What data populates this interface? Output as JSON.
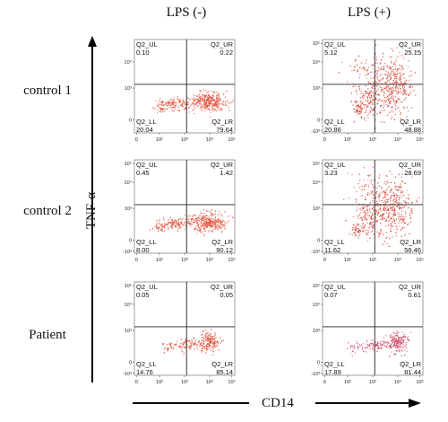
{
  "columns": [
    "LPS (-)",
    "LPS (+)"
  ],
  "rows": [
    "control 1",
    "control 2",
    "Patient"
  ],
  "y_axis_label": "TNF-α",
  "x_axis_label": "CD14",
  "chart_data": {
    "type": "scatter",
    "plot_kind": "flow cytometry quadrant dot plots",
    "x_ticks": [
      "0",
      "10²",
      "10³",
      "10⁴",
      "10⁵"
    ],
    "y_ticks": [
      "-10³",
      "0",
      "10³",
      "10⁴",
      "10⁵"
    ],
    "y_ticks_shown_control1_lps_minus": [
      "0",
      "10³",
      "10⁴"
    ],
    "panels": [
      {
        "row": "control 1",
        "condition": "LPS (-)",
        "color": "#e2553f",
        "density": "tight",
        "quadrants": {
          "UL": {
            "label": "Q2_UL",
            "value": "0.10"
          },
          "UR": {
            "label": "Q2_UR",
            "value": "0.22"
          },
          "LL": {
            "label": "Q2_LL",
            "value": "20.04"
          },
          "LR": {
            "label": "Q2_LR",
            "value": "79.64"
          }
        }
      },
      {
        "row": "control 1",
        "condition": "LPS (+)",
        "color": "#d9483c",
        "density": "spread",
        "quadrants": {
          "UL": {
            "label": "Q2_UL",
            "value": "5.12"
          },
          "UR": {
            "label": "Q2_UR",
            "value": "25.15"
          },
          "LL": {
            "label": "Q2_LL",
            "value": "20.86"
          },
          "LR": {
            "label": "Q2_LR",
            "value": "48.88"
          }
        }
      },
      {
        "row": "control 2",
        "condition": "LPS (-)",
        "color": "#e2553f",
        "density": "tight",
        "quadrants": {
          "UL": {
            "label": "Q2_UL",
            "value": "0.45"
          },
          "UR": {
            "label": "Q2_UR",
            "value": "1.42"
          },
          "LL": {
            "label": "Q2_LL",
            "value": "8.00"
          },
          "LR": {
            "label": "Q2_LR",
            "value": "90.12"
          }
        }
      },
      {
        "row": "control 2",
        "condition": "LPS (+)",
        "color": "#d9483c",
        "density": "spread",
        "quadrants": {
          "UL": {
            "label": "Q2_UL",
            "value": "3.23"
          },
          "UR": {
            "label": "Q2_UR",
            "value": "28.69"
          },
          "LL": {
            "label": "Q2_LL",
            "value": "11.62"
          },
          "LR": {
            "label": "Q2_LR",
            "value": "56.46"
          }
        }
      },
      {
        "row": "Patient",
        "condition": "LPS (-)",
        "color": "#e2553f",
        "density": "sparse",
        "quadrants": {
          "UL": {
            "label": "Q2_UL",
            "value": "0.05"
          },
          "UR": {
            "label": "Q2_UR",
            "value": "0.05"
          },
          "LL": {
            "label": "Q2_LL",
            "value": "14.76"
          },
          "LR": {
            "label": "Q2_LR",
            "value": "85.14"
          }
        }
      },
      {
        "row": "Patient",
        "condition": "LPS (+)",
        "color": "#cf4a6a",
        "density": "sparse",
        "quadrants": {
          "UL": {
            "label": "Q2_UL",
            "value": "0.07"
          },
          "UR": {
            "label": "Q2_UR",
            "value": "0.61"
          },
          "LL": {
            "label": "Q2_LL",
            "value": "17.89"
          },
          "LR": {
            "label": "Q2_LR",
            "value": "81.44"
          }
        }
      }
    ]
  }
}
